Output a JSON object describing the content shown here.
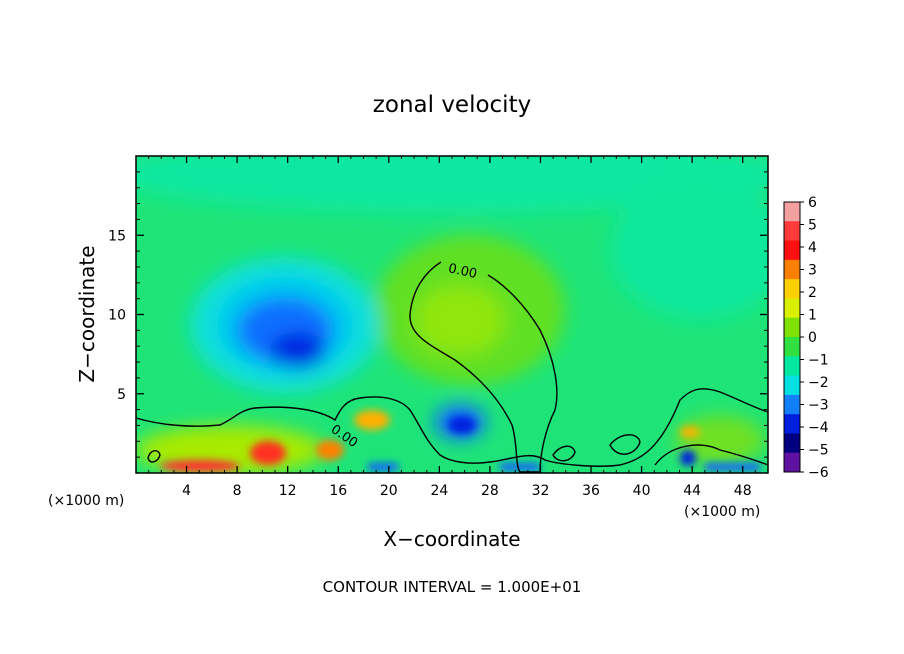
{
  "chart_data": {
    "type": "heatmap",
    "title": "zonal velocity",
    "xlabel": "X−coordinate",
    "ylabel": "Z−coordinate",
    "x_unit_label": "(×1000 m)",
    "x_unit_label_right": "(×1000 m)",
    "xlim": [
      0,
      50
    ],
    "ylim": [
      0,
      20
    ],
    "x_ticks": [
      4,
      8,
      12,
      16,
      20,
      24,
      28,
      32,
      36,
      40,
      44,
      48
    ],
    "y_ticks": [
      5,
      10,
      15
    ],
    "colorbar": {
      "ticks": [
        "6",
        "5",
        "4",
        "3",
        "2",
        "1",
        "0",
        "−1",
        "−2",
        "−3",
        "−4",
        "−5",
        "−6"
      ],
      "colors": [
        "#f4a0a0",
        "#ff3a3a",
        "#ff1010",
        "#ff8000",
        "#ffd000",
        "#d8f000",
        "#80e000",
        "#30e040",
        "#00e8a0",
        "#00e0e0",
        "#1080ff",
        "#0020e0",
        "#000080",
        "#6010a0"
      ]
    },
    "contour_labels": [
      "0.00",
      "0.00"
    ],
    "footer": "CONTOUR INTERVAL = 1.000E+01",
    "features": [
      {
        "type": "min",
        "x": 12.5,
        "z": 8,
        "value": -4.5
      },
      {
        "type": "min",
        "x": 25.5,
        "z": 3,
        "value": -3.5
      },
      {
        "type": "min",
        "x": 43.5,
        "z": 1,
        "value": -4
      },
      {
        "type": "max",
        "x": 10,
        "z": 1,
        "value": 4
      },
      {
        "type": "max",
        "x": 18.5,
        "z": 3,
        "value": 2.5
      },
      {
        "type": "max",
        "x": 26,
        "z": 10,
        "value": 0.8
      }
    ]
  }
}
